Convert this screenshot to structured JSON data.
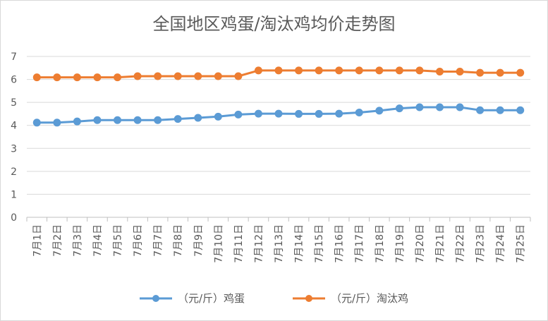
{
  "chart_data": {
    "type": "line",
    "title": "全国地区鸡蛋/淘汰鸡均价走势图",
    "xlabel": "",
    "ylabel": "",
    "ylim": [
      0,
      7
    ],
    "yticks": [
      "0",
      "1",
      "2",
      "3",
      "4",
      "5",
      "6",
      "7"
    ],
    "grid": true,
    "legend_position": "bottom",
    "categories": [
      "7月1日",
      "7月2日",
      "7月3日",
      "7月4日",
      "7月5日",
      "7月6日",
      "7月7日",
      "7月8日",
      "7月9日",
      "7月10日",
      "7月11日",
      "7月12日",
      "7月13日",
      "7月14日",
      "7月15日",
      "7月16日",
      "7月17日",
      "7月18日",
      "7月19日",
      "7月20日",
      "7月21日",
      "7月22日",
      "7月23日",
      "7月24日",
      "7月25日"
    ],
    "series": [
      {
        "name": "（元/斤）鸡蛋",
        "color": "#5b9bd5",
        "values": [
          4.12,
          4.12,
          4.17,
          4.23,
          4.23,
          4.23,
          4.23,
          4.28,
          4.33,
          4.38,
          4.47,
          4.51,
          4.51,
          4.5,
          4.5,
          4.51,
          4.56,
          4.64,
          4.74,
          4.79,
          4.79,
          4.79,
          4.66,
          4.66,
          4.66
        ]
      },
      {
        "name": "（元/斤）淘汰鸡",
        "color": "#ed7d31",
        "values": [
          6.09,
          6.09,
          6.09,
          6.09,
          6.09,
          6.14,
          6.14,
          6.14,
          6.14,
          6.14,
          6.14,
          6.39,
          6.39,
          6.39,
          6.39,
          6.39,
          6.39,
          6.39,
          6.39,
          6.39,
          6.34,
          6.34,
          6.29,
          6.29,
          6.29
        ]
      }
    ]
  }
}
